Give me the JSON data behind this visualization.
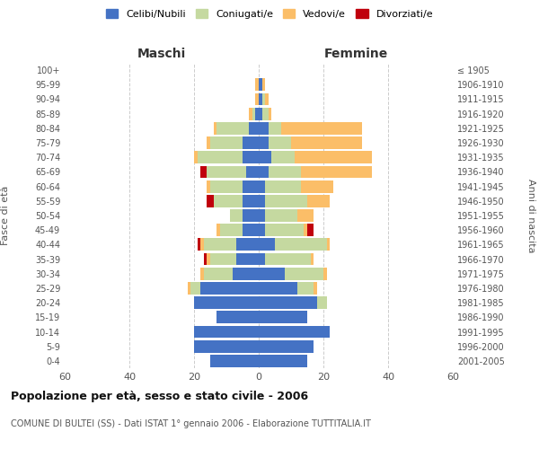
{
  "age_groups": [
    "0-4",
    "5-9",
    "10-14",
    "15-19",
    "20-24",
    "25-29",
    "30-34",
    "35-39",
    "40-44",
    "45-49",
    "50-54",
    "55-59",
    "60-64",
    "65-69",
    "70-74",
    "75-79",
    "80-84",
    "85-89",
    "90-94",
    "95-99",
    "100+"
  ],
  "birth_years": [
    "2001-2005",
    "1996-2000",
    "1991-1995",
    "1986-1990",
    "1981-1985",
    "1976-1980",
    "1971-1975",
    "1966-1970",
    "1961-1965",
    "1956-1960",
    "1951-1955",
    "1946-1950",
    "1941-1945",
    "1936-1940",
    "1931-1935",
    "1926-1930",
    "1921-1925",
    "1916-1920",
    "1911-1915",
    "1906-1910",
    "≤ 1905"
  ],
  "male_celibe": [
    15,
    20,
    20,
    13,
    20,
    18,
    8,
    7,
    7,
    5,
    5,
    5,
    5,
    4,
    5,
    5,
    3,
    1,
    0,
    0,
    0
  ],
  "male_coniugato": [
    0,
    0,
    0,
    0,
    0,
    3,
    9,
    8,
    10,
    7,
    4,
    9,
    10,
    12,
    14,
    10,
    10,
    1,
    0,
    0,
    0
  ],
  "male_vedovo": [
    0,
    0,
    0,
    0,
    0,
    1,
    1,
    1,
    1,
    1,
    0,
    0,
    1,
    0,
    1,
    1,
    1,
    1,
    1,
    1,
    0
  ],
  "male_divorziato": [
    0,
    0,
    0,
    0,
    0,
    0,
    0,
    1,
    1,
    0,
    0,
    2,
    0,
    2,
    0,
    0,
    0,
    0,
    0,
    0,
    0
  ],
  "female_celibe": [
    15,
    17,
    22,
    15,
    18,
    12,
    8,
    2,
    5,
    2,
    2,
    2,
    2,
    3,
    4,
    3,
    3,
    1,
    1,
    1,
    0
  ],
  "female_coniugata": [
    0,
    0,
    0,
    0,
    3,
    5,
    12,
    14,
    16,
    12,
    10,
    13,
    11,
    10,
    7,
    7,
    4,
    2,
    1,
    0,
    0
  ],
  "female_vedova": [
    0,
    0,
    0,
    0,
    0,
    1,
    1,
    1,
    1,
    1,
    5,
    7,
    10,
    22,
    24,
    22,
    25,
    1,
    1,
    1,
    0
  ],
  "female_divorziata": [
    0,
    0,
    0,
    0,
    0,
    0,
    0,
    0,
    0,
    2,
    0,
    0,
    0,
    0,
    0,
    0,
    0,
    0,
    0,
    0,
    0
  ],
  "colors": {
    "celibe": "#4472C4",
    "coniugato": "#C5D9A0",
    "vedovo": "#FBBE68",
    "divorziato": "#C0000C"
  },
  "title": "Popolazione per età, sesso e stato civile - 2006",
  "subtitle": "COMUNE DI BULTEI (SS) - Dati ISTAT 1° gennaio 2006 - Elaborazione TUTTITALIA.IT",
  "xlabel_left": "Maschi",
  "xlabel_right": "Femmine",
  "ylabel_left": "Fasce di età",
  "ylabel_right": "Anni di nascita",
  "legend_labels": [
    "Celibi/Nubili",
    "Coniugati/e",
    "Vedovi/e",
    "Divorziati/e"
  ],
  "xlim": 60,
  "background_color": "#ffffff",
  "grid_color": "#cccccc"
}
